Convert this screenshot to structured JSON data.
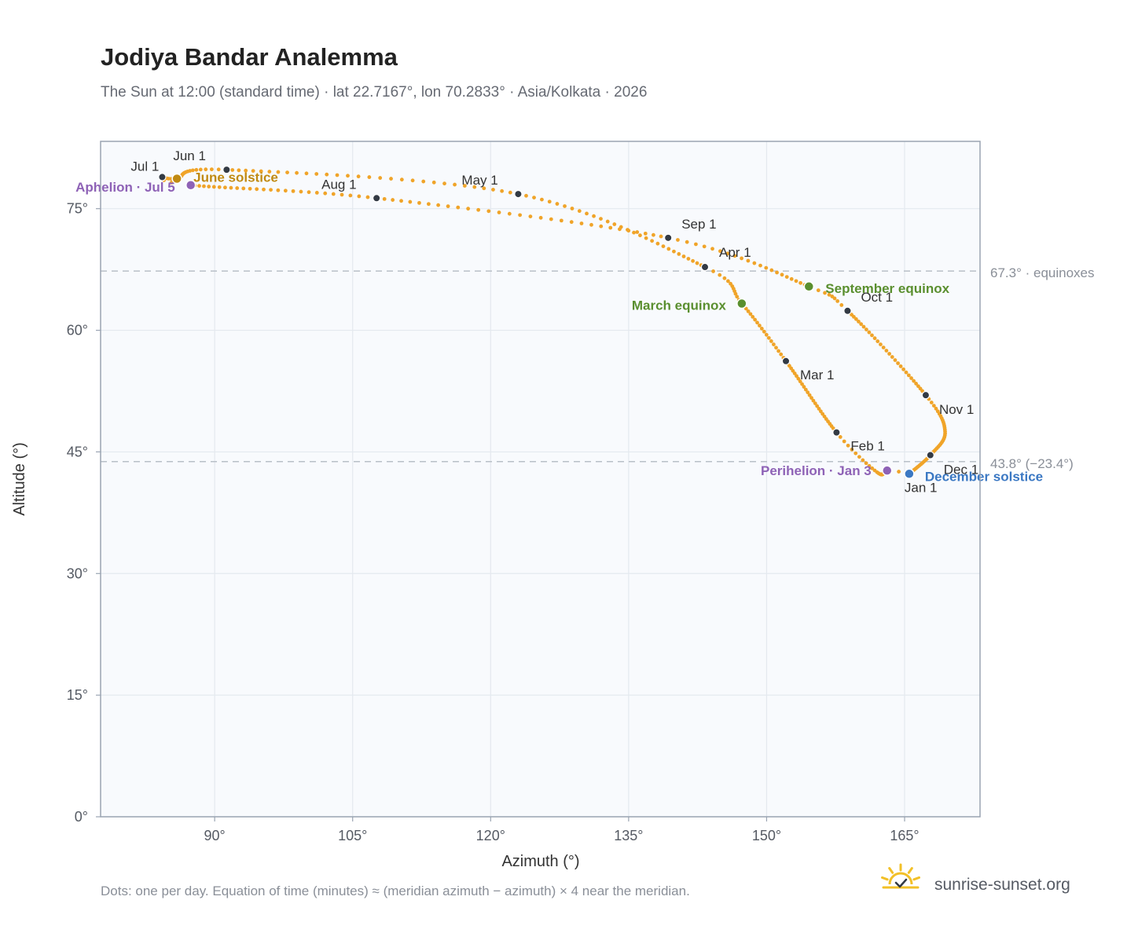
{
  "colors": {
    "curve": "#f0a429",
    "month_dot": "#333a44",
    "equinox": "#5a8f2f",
    "december": "#3b78c3",
    "june": "#c08a12",
    "apsis": "#8e62b6",
    "grid": "#e4e9ef",
    "plot_bg": "#f8fafd",
    "frame": "#9aa4b2",
    "ref_line": "#b9c0c8",
    "brand_sun": "#f2c028"
  },
  "chart_data": {
    "type": "scatter",
    "title": "Jodiya Bandar Analemma",
    "subtitle": "The Sun at 12:00 (standard time) · lat 22.7167°, lon 70.2833° · Asia/Kolkata · 2026",
    "xlabel": "Azimuth (°)",
    "ylabel": "Altitude (°)",
    "xlim": [
      77.6,
      173.2
    ],
    "ylim": [
      0,
      83.3
    ],
    "x_ticks": [
      90,
      105,
      120,
      135,
      150,
      165
    ],
    "y_ticks": [
      0,
      15,
      30,
      45,
      60,
      75
    ],
    "x_tick_labels": [
      "90°",
      "105°",
      "120°",
      "135°",
      "150°",
      "165°"
    ],
    "y_tick_labels": [
      "0°",
      "15°",
      "30°",
      "45°",
      "60°",
      "75°"
    ],
    "grid": true,
    "series": [
      {
        "daily_knots": [
          {
            "day": 1,
            "x": 165.5,
            "y": 42.4
          },
          {
            "day": 3,
            "x": 163.1,
            "y": 42.7
          },
          {
            "day": 20,
            "x": 162.0,
            "y": 42.5
          },
          {
            "day": 32,
            "x": 157.6,
            "y": 47.4
          },
          {
            "day": 60,
            "x": 152.1,
            "y": 56.2
          },
          {
            "day": 79,
            "x": 147.3,
            "y": 63.3
          },
          {
            "day": 91,
            "x": 143.3,
            "y": 67.8
          },
          {
            "day": 121,
            "x": 123.0,
            "y": 76.8
          },
          {
            "day": 152,
            "x": 91.3,
            "y": 79.8
          },
          {
            "day": 172,
            "x": 85.9,
            "y": 78.7
          },
          {
            "day": 182,
            "x": 84.3,
            "y": 78.9
          },
          {
            "day": 186,
            "x": 87.4,
            "y": 77.9
          },
          {
            "day": 213,
            "x": 107.6,
            "y": 76.3
          },
          {
            "day": 244,
            "x": 139.3,
            "y": 71.4
          },
          {
            "day": 266,
            "x": 154.6,
            "y": 65.4
          },
          {
            "day": 274,
            "x": 158.8,
            "y": 62.4
          },
          {
            "day": 305,
            "x": 167.3,
            "y": 52.0
          },
          {
            "day": 320,
            "x": 169.4,
            "y": 47.5
          },
          {
            "day": 335,
            "x": 167.8,
            "y": 44.6
          },
          {
            "day": 352,
            "x": 165.5,
            "y": 42.3
          },
          {
            "day": 365,
            "x": 165.5,
            "y": 42.4
          }
        ]
      }
    ],
    "month_markers": [
      {
        "label": "Jan 1",
        "x": 165.5,
        "y": 42.4,
        "dx": -6,
        "dy": 24
      },
      {
        "label": "Feb 1",
        "x": 157.6,
        "y": 47.4,
        "dx": 18,
        "dy": 23
      },
      {
        "label": "Mar 1",
        "x": 152.1,
        "y": 56.2,
        "dx": 18,
        "dy": 23
      },
      {
        "label": "Apr 1",
        "x": 143.3,
        "y": 67.8,
        "dx": 18,
        "dy": -13
      },
      {
        "label": "May 1",
        "x": 123.0,
        "y": 76.8,
        "dx": -72,
        "dy": -12
      },
      {
        "label": "Jun 1",
        "x": 91.3,
        "y": 79.8,
        "dx": -68,
        "dy": -12
      },
      {
        "label": "Jul 1",
        "x": 84.3,
        "y": 78.9,
        "dx": -40,
        "dy": -8
      },
      {
        "label": "Aug 1",
        "x": 107.6,
        "y": 76.3,
        "dx": -70,
        "dy": -12
      },
      {
        "label": "Sep 1",
        "x": 139.3,
        "y": 71.4,
        "dx": 17,
        "dy": -12
      },
      {
        "label": "Oct 1",
        "x": 158.8,
        "y": 62.4,
        "dx": 17,
        "dy": -12
      },
      {
        "label": "Nov 1",
        "x": 167.3,
        "y": 52.0,
        "dx": 17,
        "dy": 24
      },
      {
        "label": "Dec 1",
        "x": 167.8,
        "y": 44.6,
        "dx": 17,
        "dy": 24
      }
    ],
    "annotations": [
      {
        "label": "March equinox",
        "x": 147.3,
        "y": 63.3,
        "color_key": "equinox",
        "anchor": "end",
        "dx": -20,
        "dy": 8
      },
      {
        "label": "September equinox",
        "x": 154.6,
        "y": 65.4,
        "color_key": "equinox",
        "anchor": "start",
        "dx": 21,
        "dy": 8
      },
      {
        "label": "June solstice",
        "x": 85.9,
        "y": 78.7,
        "color_key": "june",
        "anchor": "start",
        "dx": 21,
        "dy": 4
      },
      {
        "label": "December solstice",
        "x": 165.5,
        "y": 42.3,
        "color_key": "december",
        "anchor": "start",
        "dx": 20,
        "dy": 9
      },
      {
        "label": "Perihelion · Jan 3",
        "x": 163.1,
        "y": 42.7,
        "color_key": "apsis",
        "anchor": "end",
        "dx": -20,
        "dy": 6
      },
      {
        "label": "Aphelion · Jul 5",
        "x": 87.4,
        "y": 77.9,
        "color_key": "apsis",
        "anchor": "end",
        "dx": -20,
        "dy": 8
      }
    ],
    "reference_lines": [
      {
        "y": 67.3,
        "label": "67.3° · equinoxes"
      },
      {
        "y": 43.8,
        "label": "43.8° (−23.4°)"
      }
    ]
  },
  "footer": {
    "note": "Dots: one per day. Equation of time (minutes) ≈ (meridian azimuth − azimuth) × 4 near the meridian.",
    "brand": "sunrise-sunset.org",
    "brand_icon": "sun-logo-icon"
  }
}
